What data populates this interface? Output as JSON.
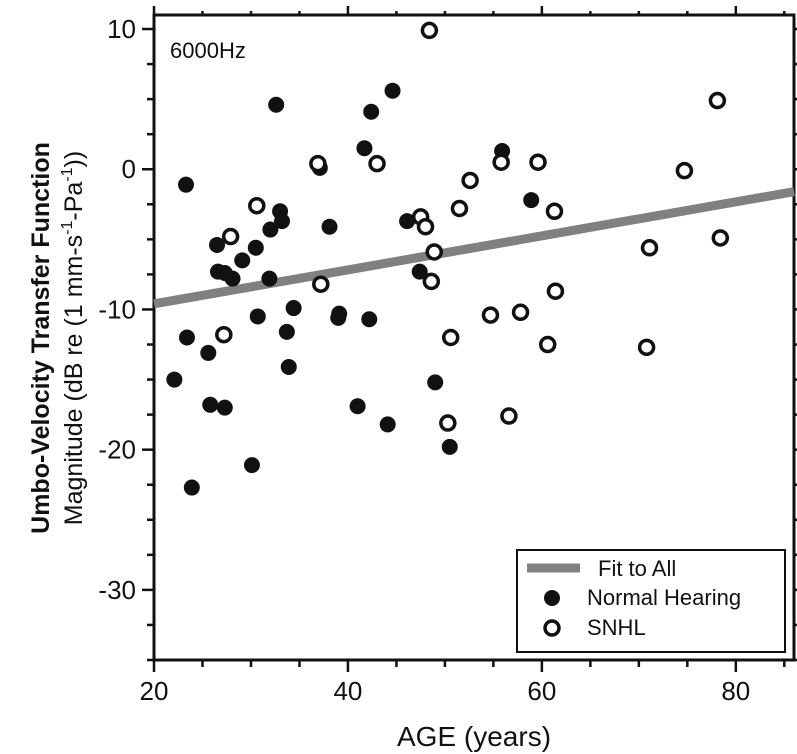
{
  "chart_data": {
    "type": "scatter",
    "panel_label": "6000Hz",
    "xlabel": "AGE (years)",
    "ylabel_line1": "Umbo-Velocity Transfer Function",
    "ylabel_line2": "Magnitude (dB re (1 mm-s-1-Pa-1))",
    "ylabel_parts": {
      "pre": "Magnitude (dB re (1 mm-s",
      "sup1": "-1",
      "mid": "-Pa",
      "sup2": "-1",
      "post": "))"
    },
    "xlim": [
      20,
      86
    ],
    "ylim": [
      -35,
      11
    ],
    "x_ticks": [
      20,
      40,
      60,
      80
    ],
    "y_ticks": [
      10,
      0,
      -10,
      -20,
      -30
    ],
    "x_tick_labels": [
      "20",
      "40",
      "60",
      "80"
    ],
    "y_tick_labels": [
      "10",
      "0",
      "-10",
      "-20",
      "-30"
    ],
    "grid": false,
    "legend_position": "bottom-right",
    "legend": {
      "fit": "Fit to All",
      "normal": "Normal Hearing",
      "snhl": "SNHL"
    },
    "fit_line": {
      "x": [
        20,
        86
      ],
      "y": [
        -9.6,
        -1.6
      ]
    },
    "series": [
      {
        "name": "Normal Hearing",
        "marker": "filled",
        "points": [
          [
            22.1,
            -15.0
          ],
          [
            23.3,
            -1.1
          ],
          [
            23.4,
            -12.0
          ],
          [
            23.9,
            -22.7
          ],
          [
            25.6,
            -13.1
          ],
          [
            25.8,
            -16.8
          ],
          [
            26.5,
            -5.4
          ],
          [
            26.6,
            -7.3
          ],
          [
            27.3,
            -7.4
          ],
          [
            27.3,
            -17.0
          ],
          [
            28.1,
            -7.8
          ],
          [
            29.1,
            -6.5
          ],
          [
            30.1,
            -21.1
          ],
          [
            30.5,
            -5.6
          ],
          [
            30.7,
            -10.5
          ],
          [
            31.9,
            -7.8
          ],
          [
            32.0,
            -4.3
          ],
          [
            32.6,
            4.6
          ],
          [
            33.0,
            -3.0
          ],
          [
            33.2,
            -3.7
          ],
          [
            33.7,
            -11.6
          ],
          [
            33.9,
            -14.1
          ],
          [
            34.4,
            -9.9
          ],
          [
            37.1,
            0.1
          ],
          [
            38.1,
            -4.1
          ],
          [
            39.0,
            -10.6
          ],
          [
            39.1,
            -10.3
          ],
          [
            41.0,
            -16.9
          ],
          [
            41.7,
            1.5
          ],
          [
            42.2,
            -10.7
          ],
          [
            42.4,
            4.1
          ],
          [
            44.1,
            -18.2
          ],
          [
            44.6,
            5.6
          ],
          [
            46.1,
            -3.7
          ],
          [
            47.4,
            -7.3
          ],
          [
            49.0,
            -15.2
          ],
          [
            50.5,
            -19.8
          ],
          [
            55.9,
            1.3
          ],
          [
            58.9,
            -2.2
          ]
        ]
      },
      {
        "name": "SNHL",
        "marker": "open",
        "points": [
          [
            27.2,
            -11.8
          ],
          [
            27.9,
            -4.8
          ],
          [
            30.6,
            -2.6
          ],
          [
            36.9,
            0.4
          ],
          [
            37.2,
            -8.2
          ],
          [
            43.0,
            0.4
          ],
          [
            47.5,
            -3.4
          ],
          [
            48.0,
            -4.1
          ],
          [
            48.4,
            9.9
          ],
          [
            48.6,
            -8.0
          ],
          [
            48.9,
            -5.9
          ],
          [
            50.3,
            -18.1
          ],
          [
            50.6,
            -12.0
          ],
          [
            51.5,
            -2.8
          ],
          [
            52.6,
            -0.8
          ],
          [
            54.7,
            -10.4
          ],
          [
            55.8,
            0.5
          ],
          [
            56.6,
            -17.6
          ],
          [
            57.8,
            -10.2
          ],
          [
            59.6,
            0.5
          ],
          [
            60.6,
            -12.5
          ],
          [
            61.3,
            -3.0
          ],
          [
            61.4,
            -8.7
          ],
          [
            70.8,
            -12.7
          ],
          [
            71.1,
            -5.6
          ],
          [
            74.7,
            -0.1
          ],
          [
            78.1,
            4.9
          ],
          [
            78.4,
            -4.9
          ]
        ]
      }
    ]
  }
}
